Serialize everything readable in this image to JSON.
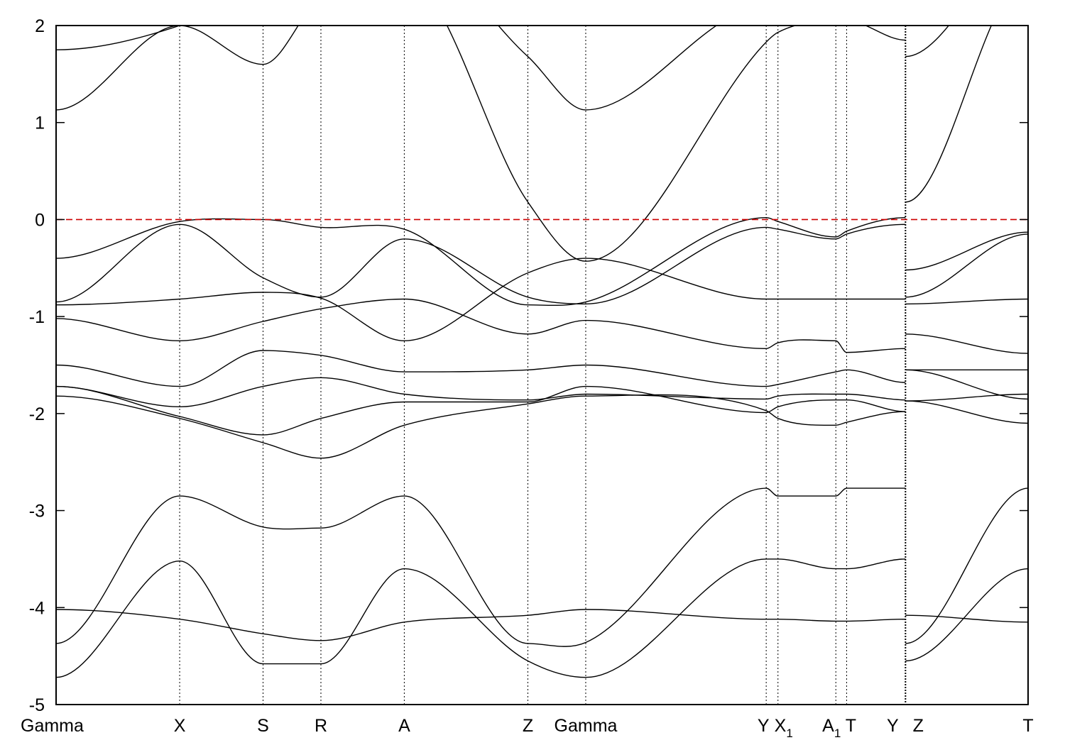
{
  "chart_data": {
    "type": "line",
    "title": "",
    "xlabel": "",
    "ylabel": "",
    "ylim": [
      -5,
      2
    ],
    "y_ticks": [
      {
        "value": -5,
        "label": "-5"
      },
      {
        "value": -4,
        "label": "-4"
      },
      {
        "value": -3,
        "label": "-3"
      },
      {
        "value": -2,
        "label": "-2"
      },
      {
        "value": -1,
        "label": "-1"
      },
      {
        "value": 0,
        "label": "0"
      },
      {
        "value": 1,
        "label": "1"
      },
      {
        "value": 2,
        "label": "2"
      }
    ],
    "grid": "vertical dotted lines at high-symmetry k-points",
    "legend": "none",
    "fermi_level": {
      "value": 0,
      "color": "#cc0000",
      "style": "dashed"
    },
    "band_color": "#000000",
    "k_path_x": [
      0,
      1.26,
      2.11,
      2.7,
      3.55,
      4.81,
      5.4,
      7.24,
      7.36,
      7.95,
      8.06,
      8.66,
      9.91
    ],
    "k_points": [
      {
        "label": "Gamma",
        "sub": "",
        "x": 0
      },
      {
        "label": "X",
        "sub": "",
        "x": 1.26
      },
      {
        "label": "S",
        "sub": "",
        "x": 2.11
      },
      {
        "label": "R",
        "sub": "",
        "x": 2.7
      },
      {
        "label": "A",
        "sub": "",
        "x": 3.55
      },
      {
        "label": "Z",
        "sub": "",
        "x": 4.81
      },
      {
        "label": "Gamma",
        "sub": "",
        "x": 5.4
      },
      {
        "label": "Y",
        "sub": "",
        "x": 7.24
      },
      {
        "label": "X",
        "sub": "1",
        "x": 7.36
      },
      {
        "label": "A",
        "sub": "1",
        "x": 7.95
      },
      {
        "label": "T",
        "sub": "",
        "x": 8.06
      },
      {
        "label": "Y",
        "sub": "",
        "x": 8.66
      },
      {
        "label": "Z",
        "sub": "",
        "x": 8.66
      },
      {
        "label": "T",
        "sub": "",
        "x": 9.91
      }
    ],
    "discontinuity_x": 8.66,
    "series": [
      {
        "values": [
          -4.72,
          -3.52,
          -4.58,
          -4.58,
          -3.6,
          -4.55,
          -4.72,
          -3.5,
          -3.5,
          -3.6,
          -3.6,
          -3.5,
          null
        ]
      },
      {
        "values": [
          -4.37,
          -2.85,
          -3.17,
          -3.18,
          -2.85,
          -4.37,
          -4.36,
          -2.77,
          -2.85,
          -2.85,
          -2.77,
          -2.77,
          null
        ]
      },
      {
        "values": [
          -4.02,
          -4.12,
          -4.27,
          -4.34,
          -4.15,
          -4.08,
          -4.02,
          -4.12,
          -4.12,
          -4.14,
          -4.14,
          -4.12,
          null
        ]
      },
      {
        "values": [
          -1.82,
          -2.05,
          -2.3,
          -2.46,
          -2.12,
          -1.9,
          -1.82,
          -1.97,
          -2.05,
          -2.12,
          -2.09,
          -1.98,
          null
        ]
      },
      {
        "values": [
          -1.72,
          -2.03,
          -2.22,
          -2.05,
          -1.88,
          -1.88,
          -1.72,
          -1.99,
          -1.93,
          -1.86,
          -1.86,
          -1.98,
          null
        ]
      },
      {
        "values": [
          -1.72,
          -1.93,
          -1.72,
          -1.63,
          -1.8,
          -1.86,
          -1.8,
          -1.85,
          -1.82,
          -1.8,
          -1.8,
          -1.86,
          null
        ]
      },
      {
        "values": [
          -1.5,
          -1.72,
          -1.35,
          -1.4,
          -1.57,
          -1.55,
          -1.5,
          -1.72,
          -1.7,
          -1.57,
          -1.55,
          -1.68,
          null
        ]
      },
      {
        "values": [
          -1.02,
          -1.25,
          -1.05,
          -0.92,
          -0.82,
          -1.18,
          -1.04,
          -1.33,
          -1.27,
          -1.25,
          -1.37,
          -1.33,
          null
        ]
      },
      {
        "values": [
          -0.88,
          -0.82,
          -0.75,
          -0.81,
          -1.25,
          -0.55,
          -0.4,
          -0.82,
          -0.82,
          -0.82,
          -0.82,
          -0.82,
          null
        ]
      },
      {
        "values": [
          -0.85,
          -0.05,
          -0.6,
          -0.8,
          -0.2,
          -0.8,
          -0.87,
          -0.08,
          -0.1,
          -0.2,
          -0.15,
          -0.05,
          null
        ]
      },
      {
        "values": [
          -0.4,
          -0.02,
          0.0,
          -0.08,
          -0.1,
          -0.88,
          -0.85,
          0.02,
          -0.02,
          -0.18,
          -0.12,
          0.02,
          null
        ]
      },
      {
        "values": [
          1.13,
          2.0,
          1.6,
          2.3,
          2.5,
          0.18,
          -0.43,
          1.83,
          1.93,
          2.05,
          2.05,
          1.85,
          null
        ]
      },
      {
        "values": [
          1.75,
          2.0,
          2.4,
          2.6,
          2.8,
          1.68,
          1.13,
          2.2,
          2.2,
          2.3,
          2.3,
          2.2,
          null
        ]
      },
      {
        "values": [
          null,
          null,
          null,
          null,
          null,
          null,
          null,
          null,
          null,
          null,
          null,
          null,
          null
        ]
      }
    ],
    "series_zt": [
      {
        "values": [
          -4.55,
          -3.6
        ]
      },
      {
        "values": [
          -4.37,
          -2.77
        ]
      },
      {
        "values": [
          -4.08,
          -4.15
        ]
      },
      {
        "values": [
          -1.87,
          -2.1
        ]
      },
      {
        "values": [
          -1.87,
          -1.8
        ]
      },
      {
        "values": [
          -1.55,
          -1.85
        ]
      },
      {
        "values": [
          -1.55,
          -1.55
        ]
      },
      {
        "values": [
          -1.18,
          -1.38
        ]
      },
      {
        "values": [
          -0.87,
          -0.82
        ]
      },
      {
        "values": [
          -0.8,
          -0.15
        ]
      },
      {
        "values": [
          -0.52,
          -0.13
        ]
      },
      {
        "values": [
          0.18,
          2.5
        ]
      },
      {
        "values": [
          1.68,
          2.8
        ]
      }
    ]
  }
}
